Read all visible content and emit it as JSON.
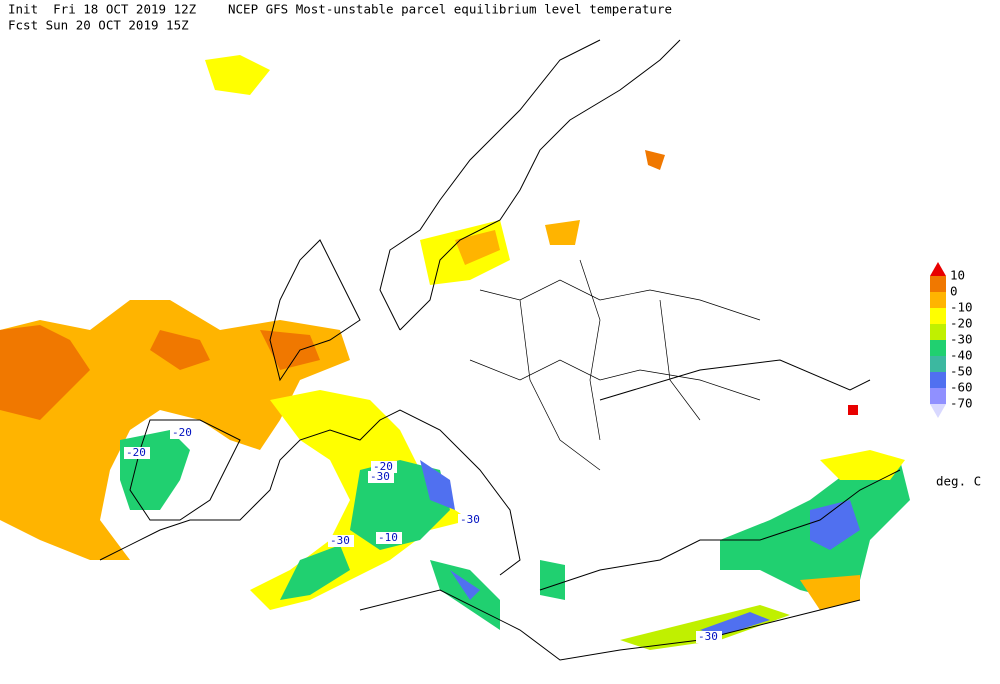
{
  "header": {
    "init": "Init  Fri 18 OCT 2019 12Z",
    "title": "NCEP GFS Most-unstable parcel equilibrium level temperature",
    "forecast": "Fcst Sun 20 OCT 2019 15Z"
  },
  "legend": {
    "levels": [
      10,
      0,
      -10,
      -20,
      -30,
      -40,
      -50,
      -60,
      -70
    ],
    "colors": [
      "#e80000",
      "#f07800",
      "#ffb400",
      "#ffff00",
      "#c0f000",
      "#20d070",
      "#3cb8a0",
      "#5070f0",
      "#9090ff",
      "#d8d8ff"
    ],
    "unit": "deg. C"
  },
  "contour_labels": [
    -20,
    -20,
    -20,
    -30,
    -30,
    -30,
    -10,
    -30
  ]
}
